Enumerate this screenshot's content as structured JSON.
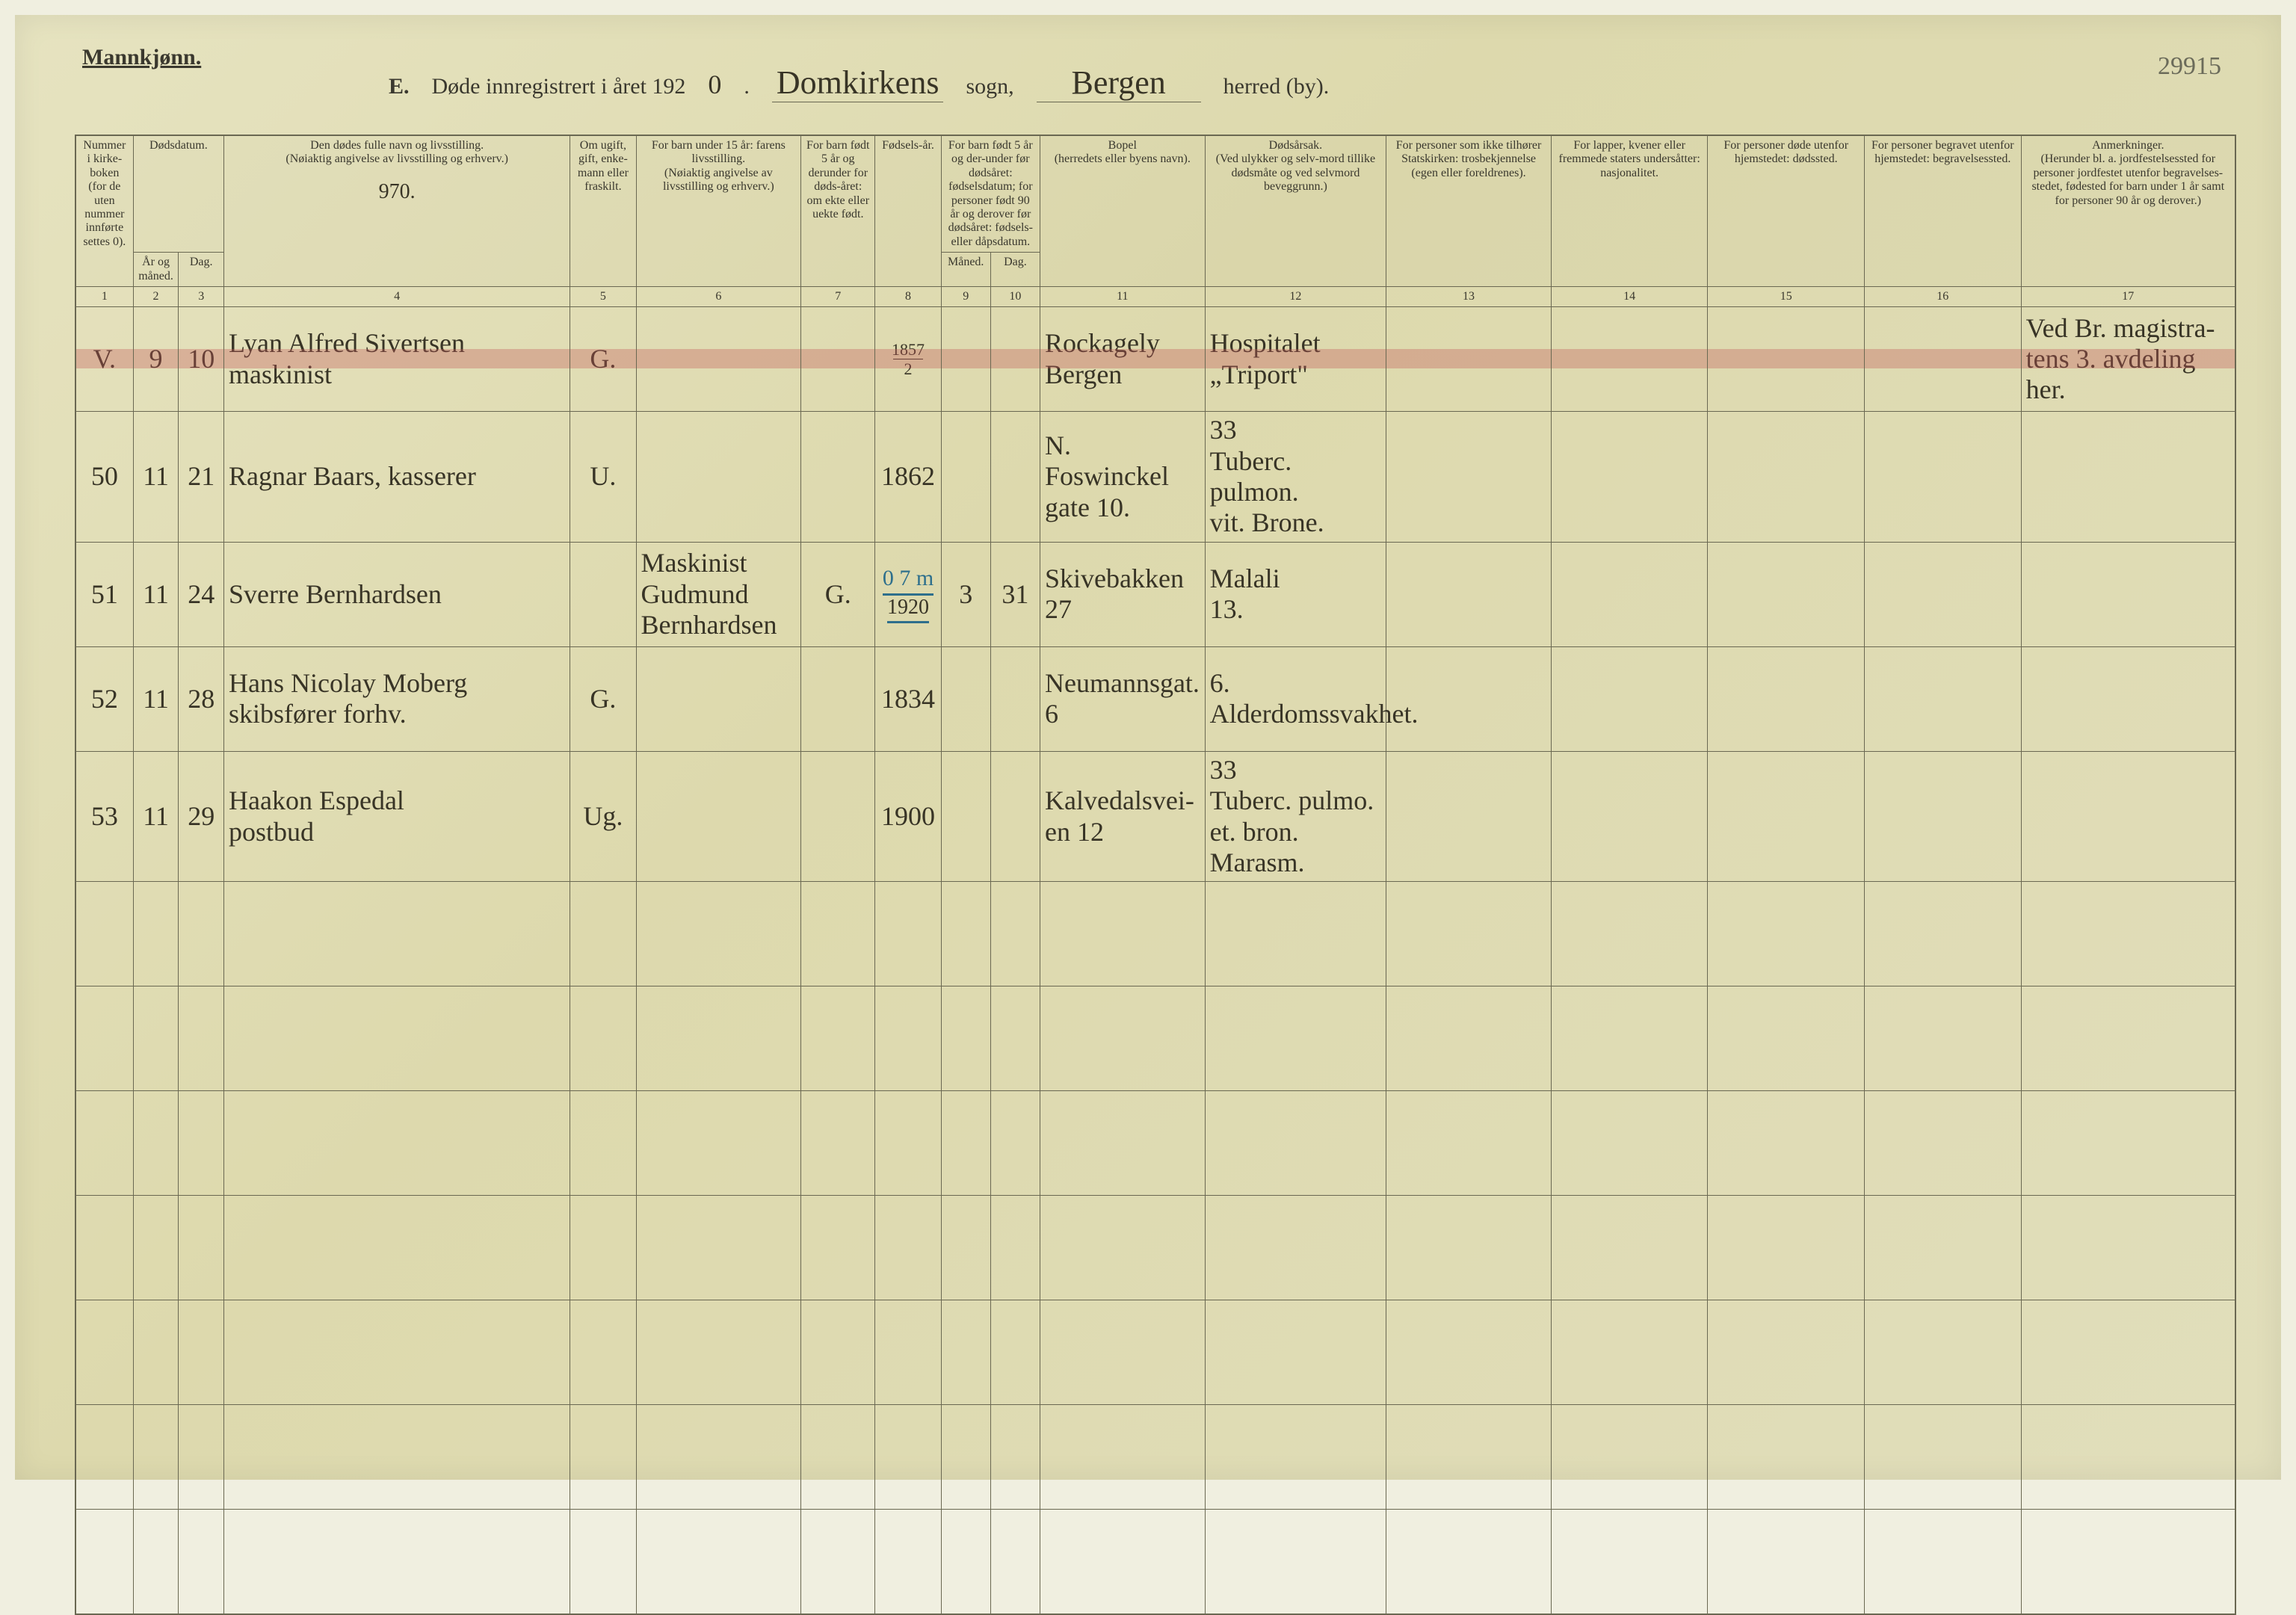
{
  "title": {
    "mannkjonn": "Mannkjønn.",
    "form_letter": "E.",
    "form_text": "Døde innregistrert i året 192",
    "year_digit": "0",
    "sogn_label": "sogn,",
    "herred_label": "herred (by).",
    "parish_hand": "Domkirkens",
    "district_hand": "Bergen",
    "corner_number": "29915"
  },
  "columns": {
    "c1": "Nummer i kirke-boken (for de uten nummer innførte settes 0).",
    "c2_3_top": "Dødsdatum.",
    "c2": "År og måned.",
    "c3": "Dag.",
    "c4": "Den dødes fulle navn og livsstilling.\n(Nøiaktig angivelse av livsstilling og erhverv.)",
    "c4_hand": "970.",
    "c5": "Om ugift, gift, enke-mann eller fraskilt.",
    "c6": "For barn under 15 år: farens livsstilling.\n(Nøiaktig angivelse av livsstilling og erhverv.)",
    "c7": "For barn født 5 år og derunder for døds-året: om ekte eller uekte født.",
    "c8": "Fødsels-år.",
    "c9_10_top": "For barn født 5 år og der-under før dødsåret: fødselsdatum; for personer født 90 år og derover før dødsåret: fødsels- eller dåpsdatum.",
    "c9": "Måned.",
    "c10": "Dag.",
    "c11": "Bopel\n(herredets eller byens navn).",
    "c12": "Dødsårsak.\n(Ved ulykker og selv-mord tillike dødsmåte og ved selvmord beveggrunn.)",
    "c13": "For personer som ikke tilhører Statskirken: trosbekjennelse (egen eller foreldrenes).",
    "c14": "For lapper, kvener eller fremmede staters undersåtter: nasjonalitet.",
    "c15": "For personer døde utenfor hjemstedet: dødssted.",
    "c16": "For personer begravet utenfor hjemstedet: begravelsessted.",
    "c17": "Anmerkninger.\n(Herunder bl. a. jordfestelsessted for personer jordfestet utenfor begravelses-stedet, fødested for barn under 1 år samt for personer 90 år og derover.)"
  },
  "colnums": [
    "1",
    "2",
    "3",
    "4",
    "5",
    "6",
    "7",
    "8",
    "9",
    "10",
    "11",
    "12",
    "13",
    "14",
    "15",
    "16",
    "17"
  ],
  "rows": [
    {
      "n": "V.",
      "mo": "9",
      "day": "10",
      "name": "Lyan Alfred Sivertsen\nmaskinist",
      "stat": "G.",
      "col6": "",
      "col7": "",
      "byear_top": "1857",
      "byear_bot": "2",
      "c9": "",
      "c10": "",
      "bopel": "Rockagely\nBergen",
      "cause": "Hospitalet\n„Triport\"",
      "c13": "",
      "c14": "",
      "c15": "",
      "c16": "",
      "anm": "Ved Br. magistra-\ntens 3. avdeling\nher.",
      "red": true
    },
    {
      "n": "50",
      "mo": "11",
      "day": "21",
      "name": "Ragnar Baars, kasserer",
      "stat": "U.",
      "col6": "",
      "col7": "",
      "byear": "1862",
      "c9": "",
      "c10": "",
      "bopel": "N. Foswinckel\ngate 10.",
      "cause": "33\nTuberc. pulmon.\nvit. Brone.",
      "c13": "",
      "c14": "",
      "c15": "",
      "c16": "",
      "anm": ""
    },
    {
      "n": "51",
      "mo": "11",
      "day": "24",
      "name": "Sverre Bernhardsen",
      "stat": "",
      "col6": "Maskinist\nGudmund\nBernhardsen",
      "col7": "G.",
      "byear_blue": "0 7 m",
      "byear_under": "1920",
      "c9": "3",
      "c10": "31",
      "bopel": "Skivebakken\n27",
      "cause": "Malali\n13.",
      "c13": "",
      "c14": "",
      "c15": "",
      "c16": "",
      "anm": ""
    },
    {
      "n": "52",
      "mo": "11",
      "day": "28",
      "name": "Hans Nicolay Moberg\nskibsfører  forhv.",
      "stat": "G.",
      "col6": "",
      "col7": "",
      "byear": "1834",
      "c9": "",
      "c10": "",
      "bopel": "Neumannsgat.\n6",
      "cause": "6.\nAlderdomssvakhet.",
      "c13": "",
      "c14": "",
      "c15": "",
      "c16": "",
      "anm": ""
    },
    {
      "n": "53",
      "mo": "11",
      "day": "29",
      "name": "Haakon Espedal\npostbud",
      "stat": "Ug.",
      "col6": "",
      "col7": "",
      "byear": "1900",
      "c9": "",
      "c10": "",
      "bopel": "Kalvedalsvei-\nen 12",
      "cause": "33\nTuberc. pulmo.\net. bron. Marasm.",
      "c13": "",
      "c14": "",
      "c15": "",
      "c16": "",
      "anm": ""
    }
  ],
  "empty_rows": 7
}
